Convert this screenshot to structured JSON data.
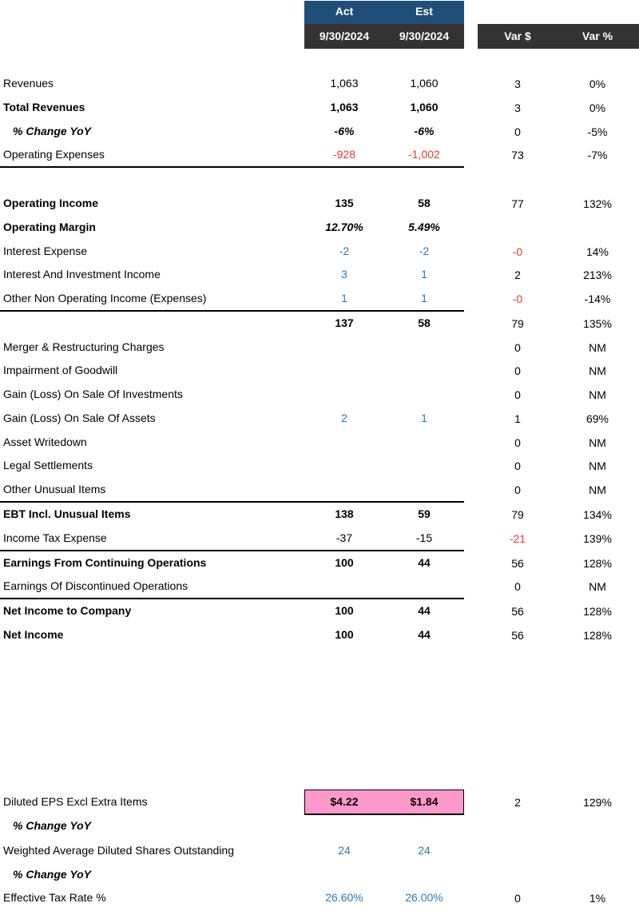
{
  "header": {
    "act": "Act",
    "est": "Est",
    "act_date": "9/30/2024",
    "est_date": "9/30/2024",
    "var_dollar": "Var $",
    "var_pct": "Var %"
  },
  "rows": [
    {
      "label": "Revenues",
      "act": "1,063",
      "est": "1,060",
      "var_dollar": "3",
      "var_pct": "0%"
    },
    {
      "label": "Total Revenues",
      "act": "1,063",
      "est": "1,060",
      "var_dollar": "3",
      "var_pct": "0%",
      "label_bold": true,
      "value_bold": true
    },
    {
      "label": "% Change YoY",
      "act": "-6%",
      "est": "-6%",
      "var_dollar": "0",
      "var_pct": "-5%",
      "label_bold": true,
      "value_bold": true,
      "label_italic": true,
      "value_italic": true,
      "indent": true
    },
    {
      "label": "Operating Expenses",
      "act": "-928",
      "est": "-1,002",
      "var_dollar": "73",
      "var_pct": "-7%",
      "value_color": "#e8392b",
      "rule_below": true
    },
    {
      "label": "Operating Income",
      "act": "135",
      "est": "58",
      "var_dollar": "77",
      "var_pct": "132%",
      "label_bold": true,
      "value_bold": true
    },
    {
      "label": "Operating Margin",
      "act": "12.70%",
      "est": "5.49%",
      "var_dollar": null,
      "var_pct": null,
      "label_bold": true,
      "value_bold": true,
      "value_italic": true
    },
    {
      "label": "Interest Expense",
      "act": "-2",
      "est": "-2",
      "var_dollar": "-0",
      "var_pct": "14%",
      "value_color": "#2a7ab8",
      "var_color": "#e8392b"
    },
    {
      "label": "Interest And Investment Income",
      "act": "3",
      "est": "1",
      "var_dollar": "2",
      "var_pct": "213%",
      "value_color": "#2a7ab8"
    },
    {
      "label": "Other Non Operating Income (Expenses)",
      "act": "1",
      "est": "1",
      "var_dollar": "-0",
      "var_pct": "-14%",
      "value_color": "#2a7ab8",
      "var_color": "#e8392b",
      "rule_below": true
    },
    {
      "label": null,
      "act": "137",
      "est": "58",
      "var_dollar": "79",
      "var_pct": "135%",
      "value_bold": true
    },
    {
      "label": "Merger & Restructuring Charges",
      "act": null,
      "est": null,
      "var_dollar": "0",
      "var_pct": "NM"
    },
    {
      "label": "Impairment of Goodwill",
      "act": null,
      "est": null,
      "var_dollar": "0",
      "var_pct": "NM"
    },
    {
      "label": "Gain (Loss) On Sale Of Investments",
      "act": null,
      "est": null,
      "var_dollar": "0",
      "var_pct": "NM"
    },
    {
      "label": "Gain (Loss) On Sale Of Assets",
      "act": "2",
      "est": "1",
      "var_dollar": "1",
      "var_pct": "69%",
      "value_color": "#2a7ab8"
    },
    {
      "label": "Asset Writedown",
      "act": null,
      "est": null,
      "var_dollar": "0",
      "var_pct": "NM"
    },
    {
      "label": "Legal Settlements",
      "act": null,
      "est": null,
      "var_dollar": "0",
      "var_pct": "NM"
    },
    {
      "label": "Other Unusual Items",
      "act": null,
      "est": null,
      "var_dollar": "0",
      "var_pct": "NM",
      "rule_below": true
    },
    {
      "label": "EBT Incl. Unusual Items",
      "act": "138",
      "est": "59",
      "var_dollar": "79",
      "var_pct": "134%",
      "label_bold": true,
      "value_bold": true
    },
    {
      "label": "Income Tax Expense",
      "act": "-37",
      "est": "-15",
      "var_dollar": "-21",
      "var_pct": "139%",
      "var_color": "#e8392b",
      "rule_below": true
    },
    {
      "label": "Earnings From Continuing Operations",
      "act": "100",
      "est": "44",
      "var_dollar": "56",
      "var_pct": "128%",
      "label_bold": true,
      "value_bold": true
    },
    {
      "label": "Earnings Of Discontinued Operations",
      "act": null,
      "est": null,
      "var_dollar": "0",
      "var_pct": "NM",
      "rule_below": true
    },
    {
      "label": "Net Income to Company",
      "act": "100",
      "est": "44",
      "var_dollar": "56",
      "var_pct": "128%",
      "label_bold": true,
      "value_bold": true
    },
    {
      "label": "Net Income",
      "act": "100",
      "est": "44",
      "var_dollar": "56",
      "var_pct": "128%",
      "label_bold": true,
      "value_bold": true
    },
    {
      "label": "Diluted EPS Excl Extra Items",
      "act": "$4.22",
      "est": "$1.84",
      "var_dollar": "2",
      "var_pct": "129%",
      "value_bold": true,
      "highlight": "#ff99cc"
    },
    {
      "label": "% Change YoY",
      "act": null,
      "est": null,
      "var_dollar": null,
      "var_pct": null,
      "label_bold": true,
      "label_italic": true,
      "indent": true
    },
    {
      "label": "Weighted Average Diluted Shares Outstanding",
      "act": "24",
      "est": "24",
      "var_dollar": null,
      "var_pct": null,
      "value_color": "#2a7ab8"
    },
    {
      "label": "% Change YoY",
      "act": null,
      "est": null,
      "var_dollar": null,
      "var_pct": null,
      "label_bold": true,
      "label_italic": true,
      "indent": true
    },
    {
      "label": "Effective Tax Rate %",
      "act": "26.60%",
      "est": "26.00%",
      "var_dollar": "0",
      "var_pct": "1%",
      "value_color": "#2a7ab8"
    }
  ]
}
